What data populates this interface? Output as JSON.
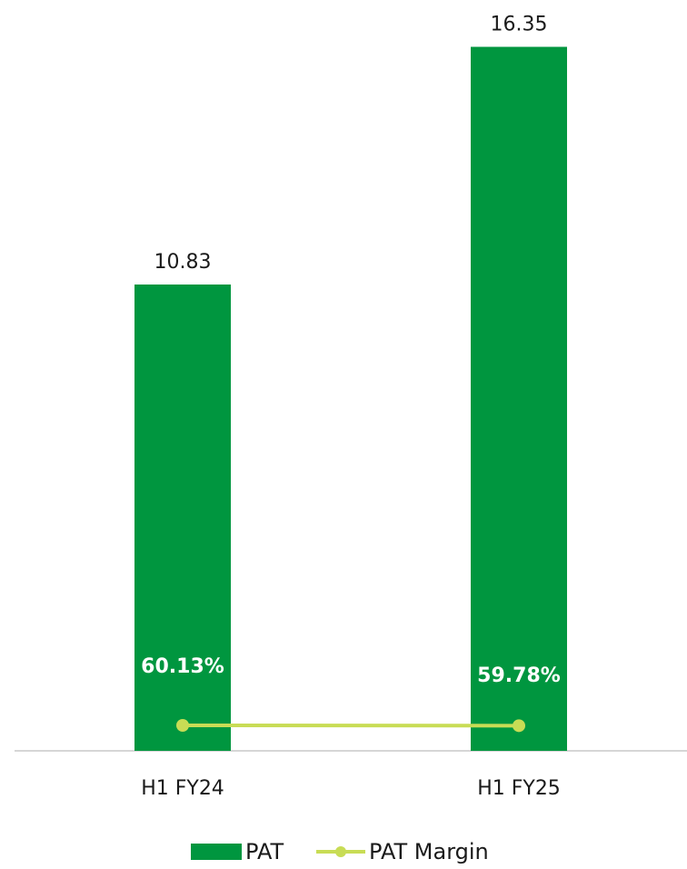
{
  "chart_data": {
    "type": "bar",
    "categories": [
      "H1 FY24",
      "H1 FY25"
    ],
    "series": [
      {
        "name": "PAT",
        "kind": "bar",
        "values": [
          10.83,
          16.35
        ],
        "value_labels": [
          "10.83",
          "16.35"
        ],
        "color": "#00963f"
      },
      {
        "name": "PAT Margin",
        "kind": "line",
        "values": [
          60.13,
          59.78
        ],
        "value_labels": [
          "60.13%",
          "59.78%"
        ],
        "color": "#c8dc55"
      }
    ],
    "title": "",
    "xlabel": "",
    "ylabel": "",
    "ylim": [
      0,
      17
    ],
    "grid": false,
    "legend_position": "bottom-center"
  }
}
